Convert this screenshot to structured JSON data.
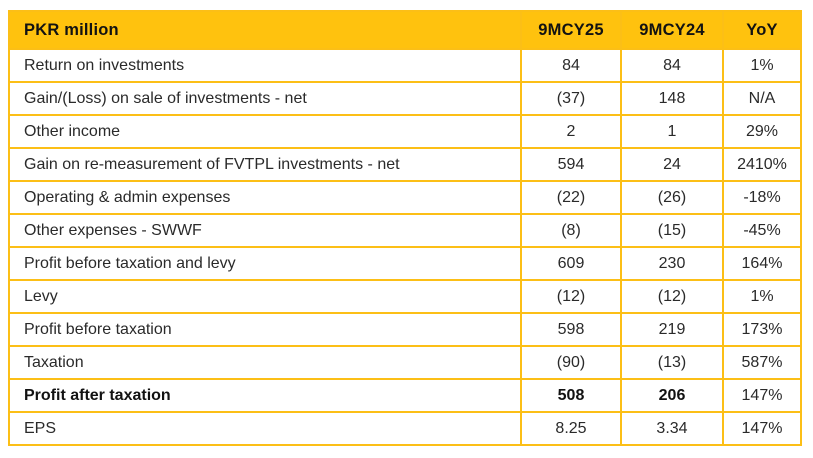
{
  "colors": {
    "header_bg": "#FFC20E",
    "grid_border": "#FCBF16",
    "header_text": "#121212",
    "body_text": "#2A2A2A",
    "page_bg": "#FFFFFF"
  },
  "table": {
    "columns": [
      "PKR million",
      "9MCY25",
      "9MCY24",
      "YoY"
    ],
    "rows": [
      {
        "label": "Return on investments",
        "v25": "84",
        "v24": "84",
        "yoy": "1%",
        "bold": false
      },
      {
        "label": "Gain/(Loss) on sale of investments - net",
        "v25": "(37)",
        "v24": "148",
        "yoy": "N/A",
        "bold": false
      },
      {
        "label": "Other income",
        "v25": "2",
        "v24": "1",
        "yoy": "29%",
        "bold": false
      },
      {
        "label": "Gain on re-measurement of FVTPL investments - net",
        "v25": "594",
        "v24": "24",
        "yoy": "2410%",
        "bold": false
      },
      {
        "label": "Operating & admin expenses",
        "v25": "(22)",
        "v24": "(26)",
        "yoy": "-18%",
        "bold": false
      },
      {
        "label": "Other expenses - SWWF",
        "v25": "(8)",
        "v24": "(15)",
        "yoy": "-45%",
        "bold": false
      },
      {
        "label": "Profit before taxation and levy",
        "v25": "609",
        "v24": "230",
        "yoy": "164%",
        "bold": false
      },
      {
        "label": "Levy",
        "v25": "(12)",
        "v24": "(12)",
        "yoy": "1%",
        "bold": false
      },
      {
        "label": "Profit before taxation",
        "v25": "598",
        "v24": "219",
        "yoy": "173%",
        "bold": false
      },
      {
        "label": "Taxation",
        "v25": "(90)",
        "v24": "(13)",
        "yoy": "587%",
        "bold": false
      },
      {
        "label": "Profit after taxation",
        "v25": "508",
        "v24": "206",
        "yoy": "147%",
        "bold": true
      },
      {
        "label": "EPS",
        "v25": "8.25",
        "v24": "3.34",
        "yoy": "147%",
        "bold": false
      }
    ]
  },
  "chart_data": {
    "type": "table",
    "title": "PKR million",
    "columns": [
      "PKR million",
      "9MCY25",
      "9MCY24",
      "YoY"
    ],
    "rows": [
      [
        "Return on investments",
        "84",
        "84",
        "1%"
      ],
      [
        "Gain/(Loss) on sale of investments - net",
        "(37)",
        "148",
        "N/A"
      ],
      [
        "Other income",
        "2",
        "1",
        "29%"
      ],
      [
        "Gain on re-measurement of FVTPL investments - net",
        "594",
        "24",
        "2410%"
      ],
      [
        "Operating & admin expenses",
        "(22)",
        "(26)",
        "-18%"
      ],
      [
        "Other expenses - SWWF",
        "(8)",
        "(15)",
        "-45%"
      ],
      [
        "Profit before taxation and levy",
        "609",
        "230",
        "164%"
      ],
      [
        "Levy",
        "(12)",
        "(12)",
        "1%"
      ],
      [
        "Profit before taxation",
        "598",
        "219",
        "173%"
      ],
      [
        "Taxation",
        "(90)",
        "(13)",
        "587%"
      ],
      [
        "Profit after taxation",
        "508",
        "206",
        "147%"
      ],
      [
        "EPS",
        "8.25",
        "3.34",
        "147%"
      ]
    ]
  }
}
